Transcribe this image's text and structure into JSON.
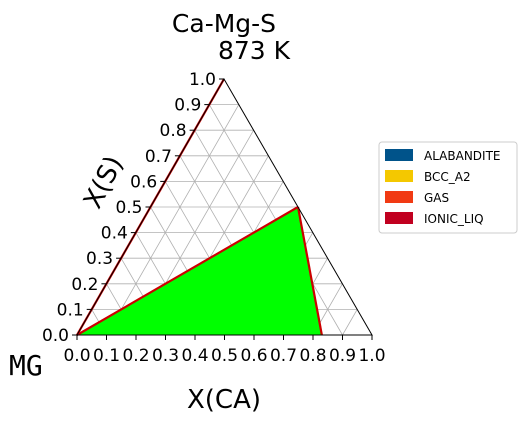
{
  "chart_data": {
    "type": "ternary-phase-diagram",
    "title": "Ca-Mg-S",
    "subtitle": "873  K",
    "corner_label": "MG",
    "xlabel": "X(CA)",
    "ylabel": "X(S)",
    "x_ticks": [
      "0.0",
      "0.1",
      "0.2",
      "0.3",
      "0.4",
      "0.5",
      "0.6",
      "0.7",
      "0.8",
      "0.9",
      "1.0"
    ],
    "y_ticks": [
      "0.0",
      "0.1",
      "0.2",
      "0.3",
      "0.4",
      "0.5",
      "0.6",
      "0.7",
      "0.8",
      "0.9",
      "1.0"
    ],
    "xlim": [
      0,
      1
    ],
    "ylim": [
      0,
      1
    ],
    "grid": true,
    "legend_position": "right",
    "legend": [
      {
        "name": "ALABANDITE",
        "color": "#00538a"
      },
      {
        "name": "BCC_A2",
        "color": "#f4c800"
      },
      {
        "name": "GAS",
        "color": "#f13a13"
      },
      {
        "name": "IONIC_LIQ",
        "color": "#c10020"
      }
    ],
    "regions": [
      {
        "color": "#00ff00",
        "points": [
          [
            0,
            0
          ],
          [
            0.5,
            0.5
          ],
          [
            0.83,
            0
          ]
        ]
      }
    ],
    "boundaries": [
      {
        "color": "#cc0000",
        "points": [
          [
            0,
            0
          ],
          [
            0,
            1
          ]
        ]
      },
      {
        "color": "#cc0000",
        "points": [
          [
            0,
            0
          ],
          [
            0.5,
            0.5
          ]
        ]
      },
      {
        "color": "#cc0000",
        "points": [
          [
            0.5,
            0.5
          ],
          [
            0.83,
            0
          ]
        ]
      }
    ]
  }
}
